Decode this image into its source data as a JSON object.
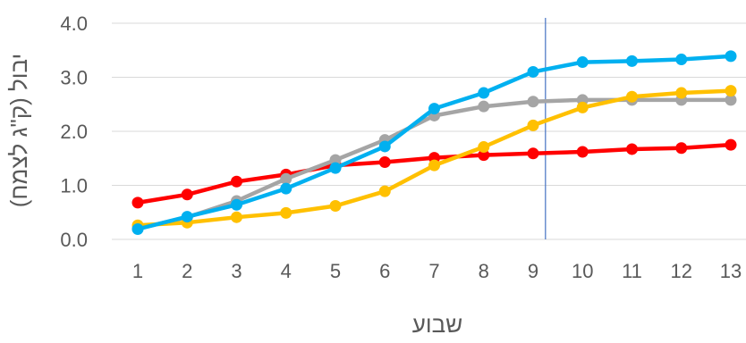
{
  "chart_data": {
    "type": "line",
    "xlabel": "שבוע",
    "ylabel": "יבול (ק\"ג לצמח)",
    "categories": [
      "1",
      "2",
      "3",
      "4",
      "5",
      "6",
      "7",
      "8",
      "9",
      "10",
      "11",
      "12",
      "13"
    ],
    "ylim": [
      0,
      4
    ],
    "yticks": [
      "0.0",
      "1.0",
      "2.0",
      "3.0",
      "4.0"
    ],
    "grid": true,
    "legend": "none",
    "reference_line_x": 9.25,
    "reference_line_color": "#4472c4",
    "series": [
      {
        "color": "#ff0000",
        "values": [
          0.68,
          0.83,
          1.07,
          1.2,
          1.37,
          1.43,
          1.51,
          1.56,
          1.59,
          1.62,
          1.67,
          1.69,
          1.75
        ]
      },
      {
        "color": "#a5a5a5",
        "values": [
          0.2,
          0.41,
          0.71,
          1.12,
          1.47,
          1.84,
          2.29,
          2.46,
          2.55,
          2.58,
          2.58,
          2.58,
          2.58
        ]
      },
      {
        "color": "#ffc000",
        "values": [
          0.26,
          0.31,
          0.41,
          0.49,
          0.62,
          0.89,
          1.37,
          1.71,
          2.11,
          2.44,
          2.64,
          2.71,
          2.75
        ]
      },
      {
        "color": "#00b0f0",
        "values": [
          0.19,
          0.42,
          0.64,
          0.94,
          1.32,
          1.72,
          2.42,
          2.71,
          3.1,
          3.28,
          3.3,
          3.33,
          3.39
        ]
      }
    ]
  }
}
